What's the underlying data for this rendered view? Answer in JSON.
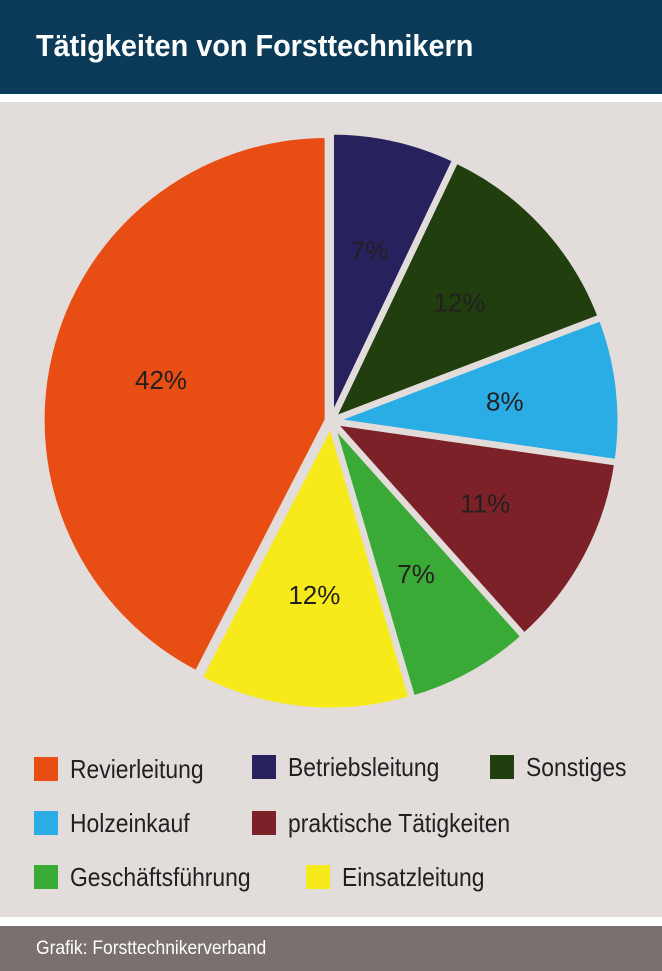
{
  "chart_data": {
    "type": "pie",
    "title": "Tätigkeiten von Forsttechnikern",
    "slices": [
      {
        "name": "Betriebsleitung",
        "value": 7,
        "label": "7%",
        "color": "#27215e"
      },
      {
        "name": "Sonstiges",
        "value": 12,
        "label": "12%",
        "color": "#203e0e"
      },
      {
        "name": "Holzeinkauf",
        "value": 8,
        "label": "8%",
        "color": "#2aace4"
      },
      {
        "name": "praktische Tätigkeiten",
        "value": 11,
        "label": "11%",
        "color": "#7d2129"
      },
      {
        "name": "Geschäftsführung",
        "value": 7,
        "label": "7%",
        "color": "#3aaa36"
      },
      {
        "name": "Einsatzleitung",
        "value": 12,
        "label": "12%",
        "color": "#f7ea1b"
      },
      {
        "name": "Revierleitung",
        "value": 42,
        "label": "42%",
        "color": "#e84e14"
      }
    ],
    "label_text_color": "#231f20",
    "legend_position": "bottom"
  },
  "legend": [
    {
      "label": "Revierleitung",
      "color": "#e84e14"
    },
    {
      "label": "Betriebsleitung",
      "color": "#27215e"
    },
    {
      "label": "Sonstiges",
      "color": "#203e0e"
    },
    {
      "label": "Holzeinkauf",
      "color": "#2aace4"
    },
    {
      "label": "praktische Tätigkeiten",
      "color": "#7d2129"
    },
    {
      "label": "Geschäftsführung",
      "color": "#3aaa36"
    },
    {
      "label": "Einsatzleitung",
      "color": "#f7ea1b"
    }
  ],
  "source": "Grafik: Forsttechnikerverband",
  "colors": {
    "header_bg": "#0c3b5a",
    "panel_bg": "#e2dcda",
    "footer_bg": "#7a716f"
  }
}
